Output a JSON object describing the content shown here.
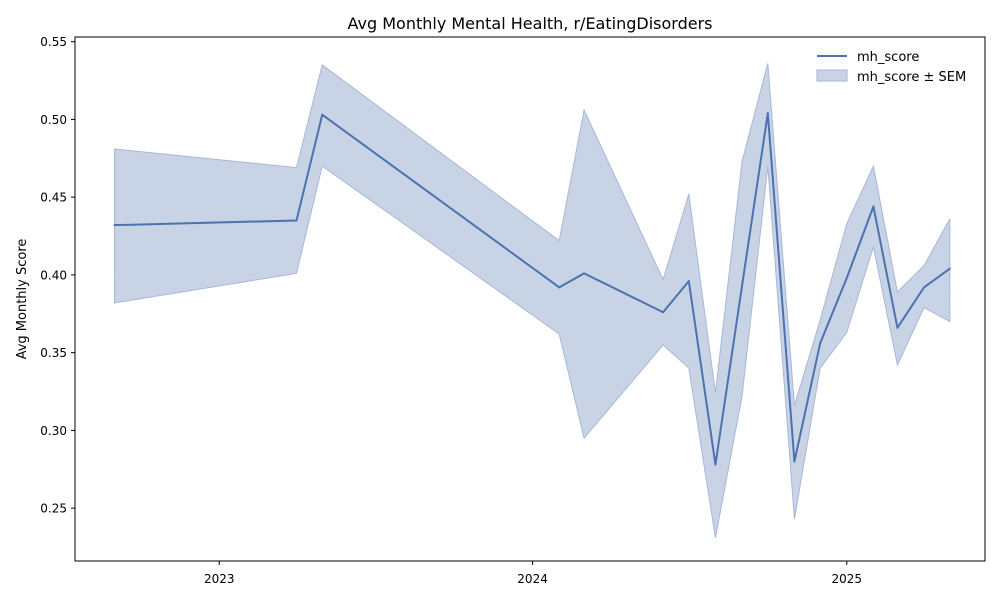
{
  "colors": {
    "line": "#4c72b0",
    "band_fill": "#c9d3e6",
    "band_edge": "#a7b8d6",
    "axis": "#000000"
  },
  "chart_data": {
    "type": "line",
    "title": "Avg Monthly Mental Health, r/EatingDisorders",
    "xlabel": "",
    "ylabel": "Avg Monthly Score",
    "x_tick_labels": [
      "2023",
      "2024",
      "2025"
    ],
    "x_tick_dates": [
      "2023-01-01",
      "2024-01-01",
      "2025-01-01"
    ],
    "xlim": [
      "2022-07-17",
      "2025-06-11"
    ],
    "ylim": [
      0.216,
      0.553
    ],
    "y_ticks": [
      0.25,
      0.3,
      0.35,
      0.4,
      0.45,
      0.5,
      0.55
    ],
    "y_tick_labels": [
      "0.25",
      "0.30",
      "0.35",
      "0.40",
      "0.45",
      "0.50",
      "0.55"
    ],
    "grid": false,
    "legend_position": "top-right",
    "legend": [
      "mh_score",
      "mh_score ± SEM"
    ],
    "series": [
      {
        "name": "mh_score",
        "x": [
          "2022-09-01",
          "2023-04-01",
          "2023-05-01",
          "2024-02-01",
          "2024-03-01",
          "2024-06-01",
          "2024-07-01",
          "2024-08-01",
          "2024-09-01",
          "2024-10-01",
          "2024-11-01",
          "2024-12-01",
          "2025-01-01",
          "2025-02-01",
          "2025-03-01",
          "2025-04-01",
          "2025-05-01"
        ],
        "y": [
          0.432,
          0.435,
          0.503,
          0.392,
          0.401,
          0.376,
          0.396,
          0.278,
          0.393,
          0.504,
          0.28,
          0.356,
          0.398,
          0.444,
          0.366,
          0.392,
          0.404
        ],
        "lower": [
          0.382,
          0.401,
          0.47,
          0.362,
          0.295,
          0.355,
          0.34,
          0.231,
          0.322,
          0.47,
          0.243,
          0.34,
          0.363,
          0.418,
          0.342,
          0.379,
          0.37
        ],
        "upper": [
          0.481,
          0.469,
          0.535,
          0.422,
          0.506,
          0.397,
          0.452,
          0.324,
          0.473,
          0.536,
          0.316,
          0.371,
          0.433,
          0.47,
          0.389,
          0.406,
          0.436
        ]
      }
    ]
  }
}
